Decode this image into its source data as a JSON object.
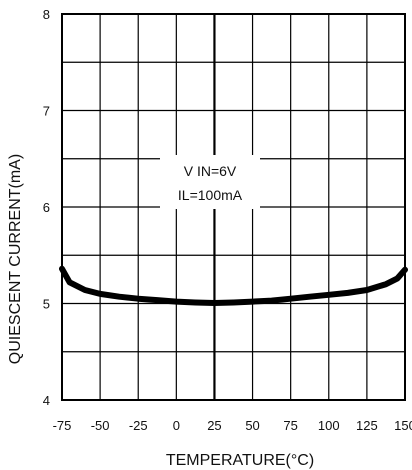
{
  "chart_data": {
    "type": "line",
    "title": "",
    "xlabel": "TEMPERATURE(°C)",
    "ylabel": "QUIESCENT CURRENT(mA)",
    "xlim": [
      -75,
      150
    ],
    "ylim": [
      4,
      8
    ],
    "x_ticks": [
      -75,
      -50,
      -25,
      0,
      25,
      50,
      75,
      100,
      125,
      150
    ],
    "y_ticks": [
      4,
      5,
      6,
      7,
      8
    ],
    "grid": true,
    "annotations": [
      "V IN=6V",
      "IL=100mA"
    ],
    "series": [
      {
        "x": [
          -75,
          -70,
          -60,
          -50,
          -37.5,
          -25,
          -12.5,
          0,
          12.5,
          25,
          37.5,
          50,
          62.5,
          75,
          87.5,
          100,
          112.5,
          125,
          137.5,
          145,
          150
        ],
        "y": [
          5.36,
          5.22,
          5.14,
          5.1,
          5.07,
          5.05,
          5.035,
          5.02,
          5.01,
          5.005,
          5.01,
          5.02,
          5.03,
          5.05,
          5.07,
          5.09,
          5.11,
          5.14,
          5.2,
          5.26,
          5.35
        ]
      }
    ]
  },
  "colors": {
    "curve": "#000000",
    "grid": "#000000",
    "text": "#111111"
  }
}
